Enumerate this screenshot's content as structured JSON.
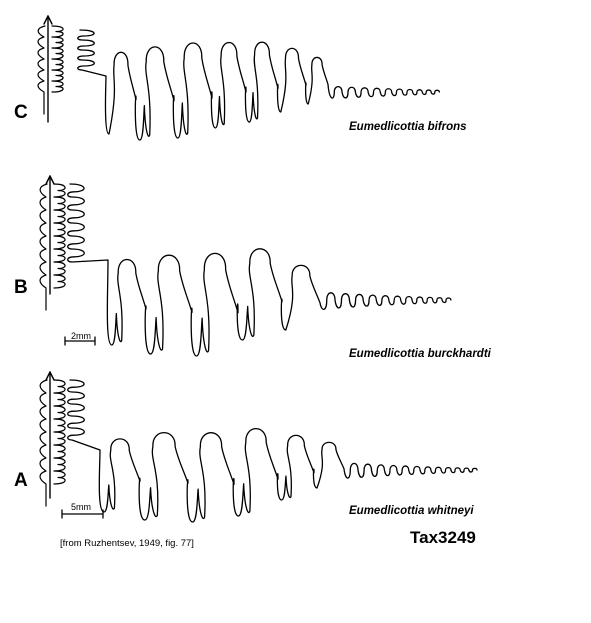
{
  "panels": [
    {
      "letter": "C",
      "species": "Eumedlicottia bifrons"
    },
    {
      "letter": "B",
      "species": "Eumedlicottia burckhardti",
      "scale": "2mm"
    },
    {
      "letter": "A",
      "species": "Eumedlicottia whitneyi",
      "scale": "5mm"
    }
  ],
  "source": "[from Ruzhentsev, 1949, fig. 77]",
  "tax_id": "Tax3249",
  "colors": {
    "line": "#000000",
    "background": "#ffffff"
  }
}
